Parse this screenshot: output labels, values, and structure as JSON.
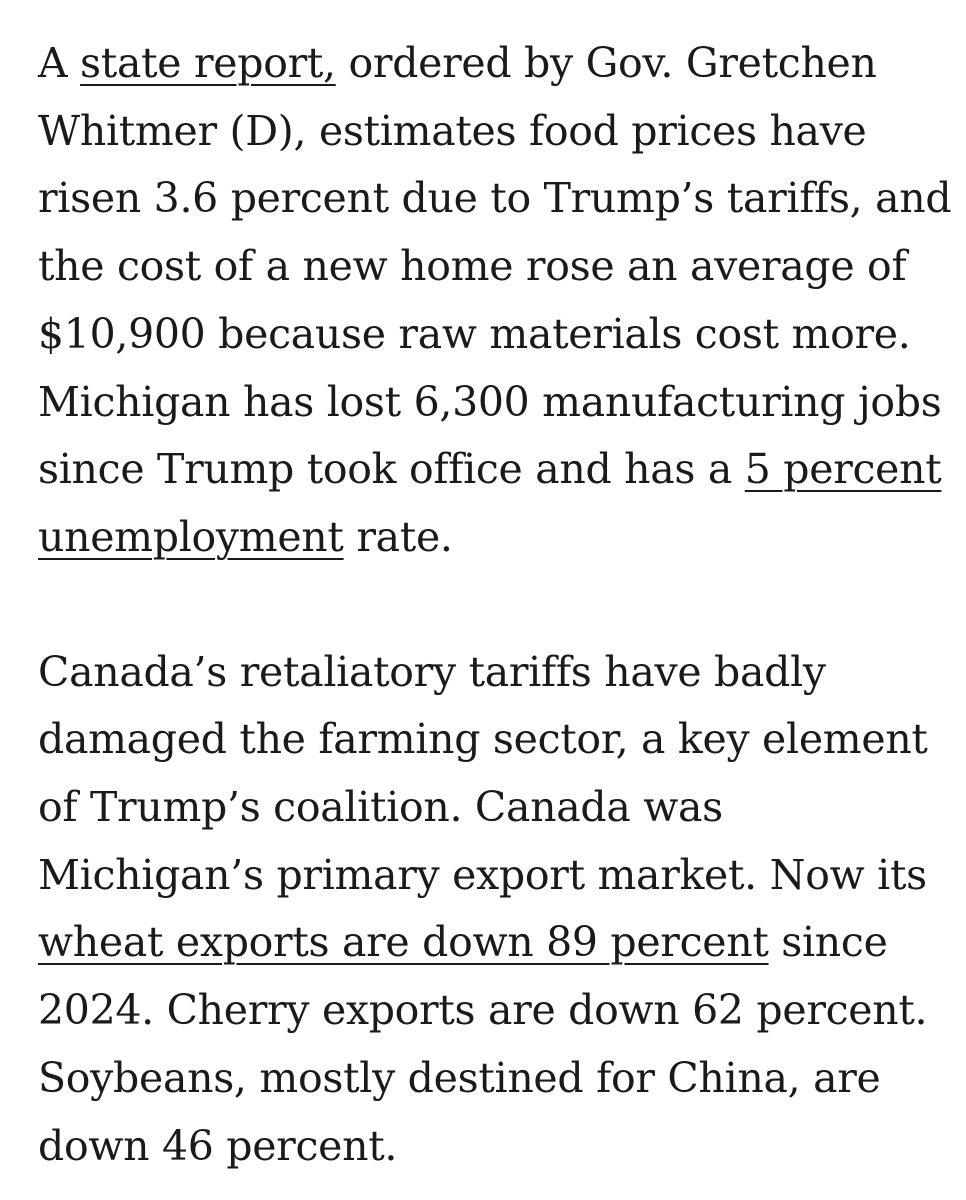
{
  "article": {
    "paragraphs": [
      {
        "lines": [
          [
            {
              "text": "A "
            },
            {
              "text": "state report,",
              "link": true
            },
            {
              "text": " ordered by Gov. Gretchen"
            }
          ],
          [
            {
              "text": "Whitmer (D), estimates food prices have"
            }
          ],
          [
            {
              "text": "risen 3.6 percent due to Trump’s tariffs, and"
            }
          ],
          [
            {
              "text": "the cost of a new home rose an average of"
            }
          ],
          [
            {
              "text": "$10,900 because raw materials cost more."
            }
          ],
          [
            {
              "text": "Michigan has lost 6,300 manufacturing jobs"
            }
          ],
          [
            {
              "text": "since Trump took office and has a "
            },
            {
              "text": "5 percent",
              "link": true
            }
          ],
          [
            {
              "text": "unemployment",
              "link": true
            },
            {
              "text": " rate."
            }
          ]
        ]
      },
      {
        "lines": [
          [
            {
              "text": "Canada’s retaliatory tariffs have badly"
            }
          ],
          [
            {
              "text": "damaged the farming sector, a key element"
            }
          ],
          [
            {
              "text": "of Trump’s coalition. Canada was"
            }
          ],
          [
            {
              "text": "Michigan’s primary export market. Now its"
            }
          ],
          [
            {
              "text": "wheat exports are down 89 percent",
              "link": true
            },
            {
              "text": " since"
            }
          ],
          [
            {
              "text": "2024. Cherry exports are down 62 percent."
            }
          ],
          [
            {
              "text": "Soybeans, mostly destined for China, are"
            }
          ],
          [
            {
              "text": "down 46 percent."
            }
          ]
        ]
      }
    ]
  }
}
